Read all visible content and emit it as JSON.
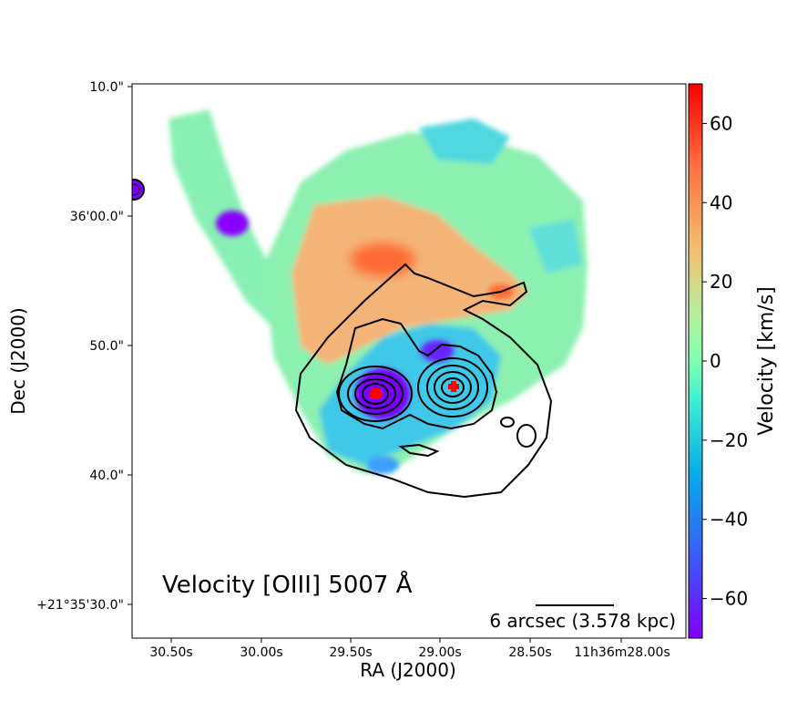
{
  "chart_data": {
    "type": "heatmap",
    "title": "Velocity [OIII] 5007 Å",
    "xlabel": "RA (J2000)",
    "ylabel": "Dec (J2000)",
    "x_ticks": [
      "30.50s",
      "30.00s",
      "29.50s",
      "29.00s",
      "28.50s",
      "11h36m28.00s"
    ],
    "y_ticks": [
      "10.0\"",
      "36'00.0\"",
      "50.0\"",
      "40.0\"",
      "+21°35'30.0\""
    ],
    "colorbar": {
      "label": "Velocity [km/s]",
      "min": -70,
      "max": 70,
      "ticks": [
        -60,
        -40,
        -20,
        0,
        20,
        40,
        60
      ],
      "tick_labels": [
        "−60",
        "−40",
        "−20",
        "0",
        "20",
        "40",
        "60"
      ],
      "colormap": "rainbow"
    },
    "scale_bar": {
      "label": "6 arcsec (3.578 kpc)"
    },
    "markers": [
      {
        "name": "nucleus-east",
        "color": "#ff0000"
      },
      {
        "name": "nucleus-west",
        "color": "#ff0000"
      }
    ]
  },
  "colors": {
    "frame": "#000000",
    "marker": "#ff0000"
  }
}
